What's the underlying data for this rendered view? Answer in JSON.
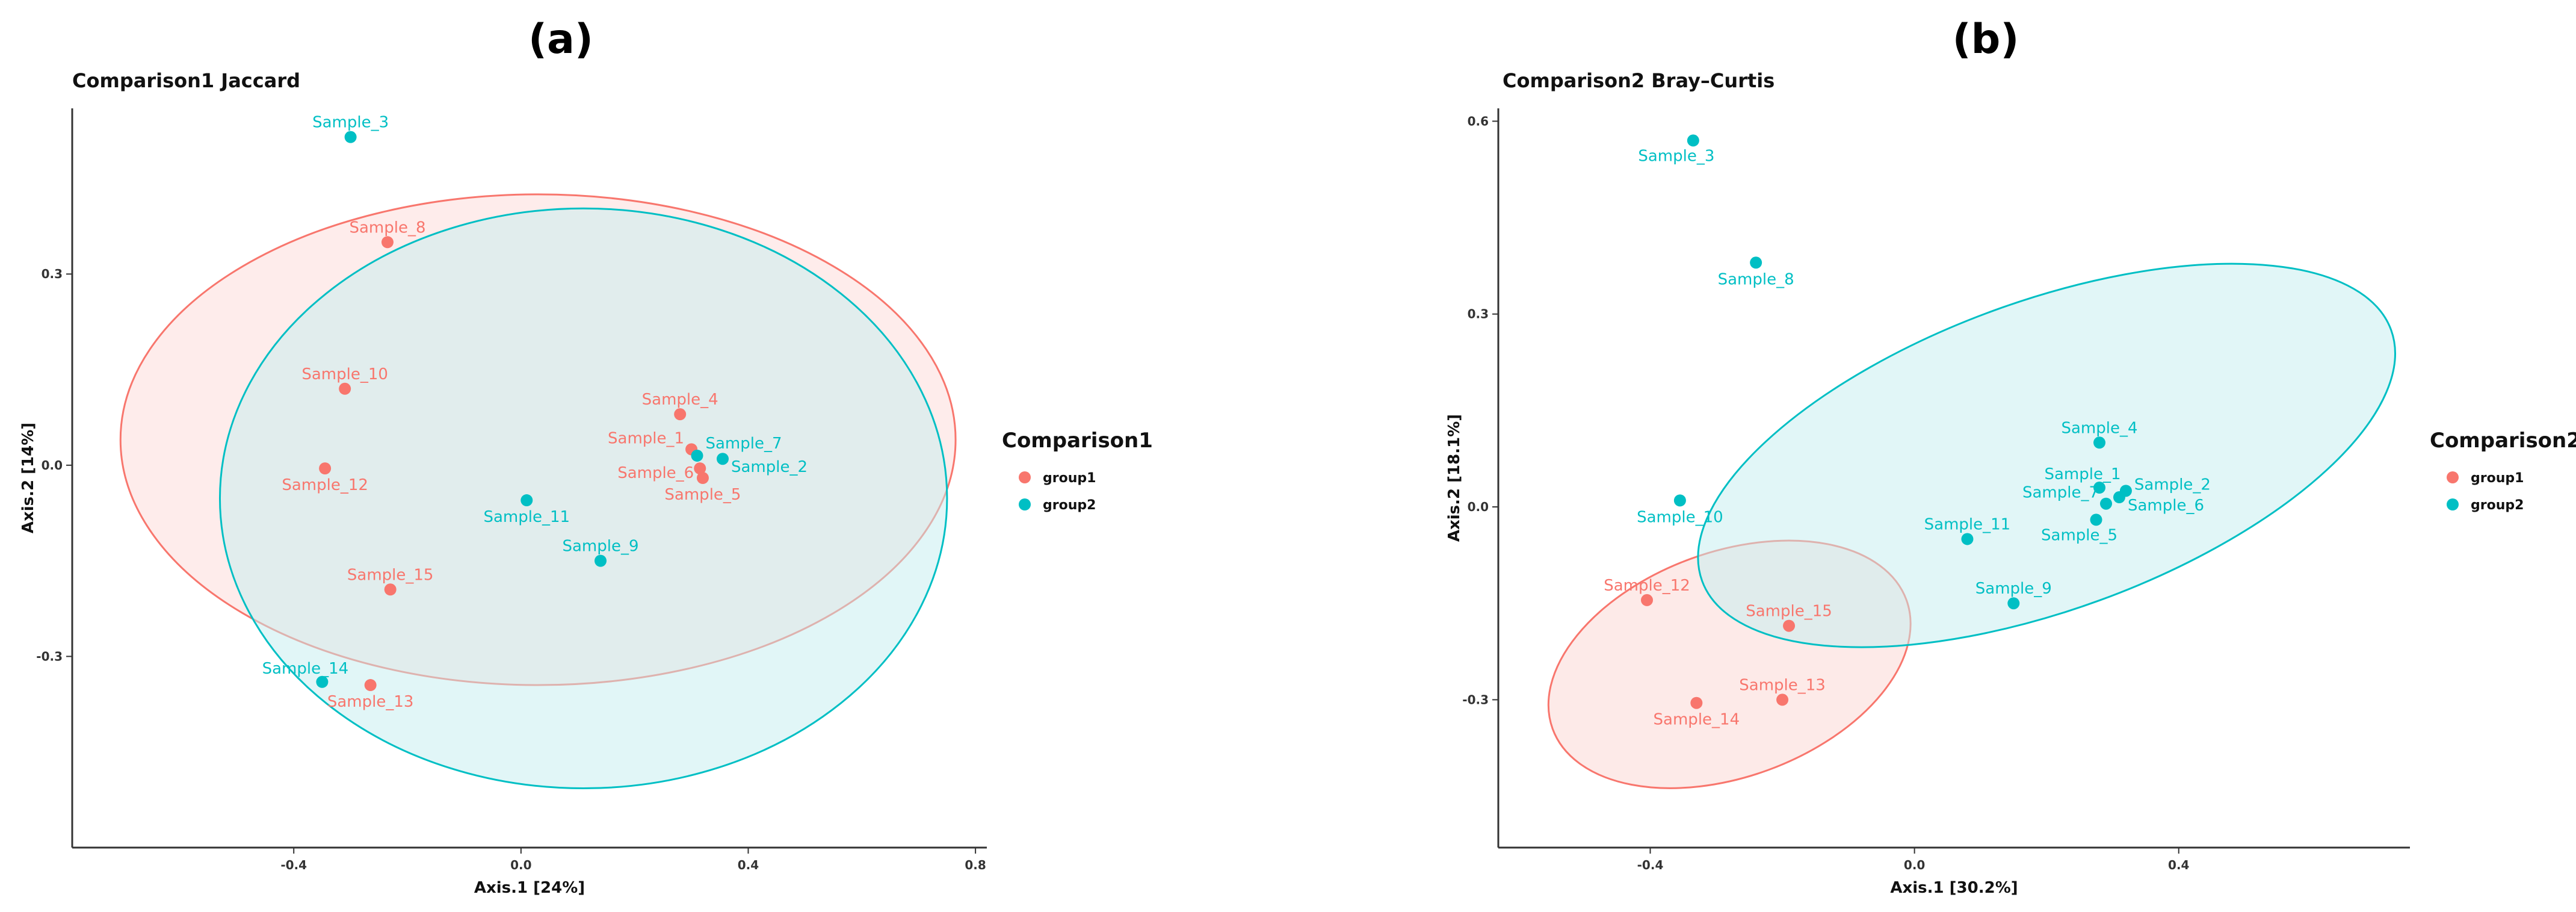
{
  "chart_data": [
    {
      "type": "scatter",
      "panel_label": "(a)",
      "title": "Comparison1 Jaccard",
      "xlabel": "Axis.1   [24%]",
      "ylabel": "Axis.2   [14%]",
      "xlim": [
        -0.79,
        0.82
      ],
      "ylim": [
        -0.6,
        0.56
      ],
      "xticks": [
        -0.4,
        0.0,
        0.4,
        0.8
      ],
      "xtick_labels": [
        "-0.4",
        "0.0",
        "0.4",
        "0.8"
      ],
      "yticks": [
        -0.3,
        0.0,
        0.3
      ],
      "ytick_labels": [
        "-0.3",
        "0.0",
        "0.3"
      ],
      "legend": {
        "title": "Comparison1",
        "position": "right",
        "entries": [
          {
            "label": "group1",
            "color": "#F8766D"
          },
          {
            "label": "group2",
            "color": "#00BFC4"
          }
        ]
      },
      "ellipses": [
        {
          "group": "group1",
          "color": "#F8766D",
          "fill": "#FDE6E4",
          "fill_opacity": 0.75,
          "cx": 0.03,
          "cy": 0.04,
          "rx": 0.735,
          "ry": 0.385,
          "rotation_deg": 0
        },
        {
          "group": "group2",
          "color": "#00BFC4",
          "fill": "#C3EEF0",
          "fill_opacity": 0.5,
          "cx": 0.11,
          "cy": -0.052,
          "rx": 0.64,
          "ry": 0.455,
          "rotation_deg": 0
        }
      ],
      "points": [
        {
          "label": "Sample_3",
          "x": -0.3,
          "y": 0.515,
          "group": "group2",
          "label_pos": "above"
        },
        {
          "label": "Sample_8",
          "x": -0.235,
          "y": 0.35,
          "group": "group1",
          "label_pos": "above"
        },
        {
          "label": "Sample_10",
          "x": -0.31,
          "y": 0.12,
          "group": "group1",
          "label_pos": "above"
        },
        {
          "label": "Sample_12",
          "x": -0.345,
          "y": -0.005,
          "group": "group1",
          "label_pos": "below"
        },
        {
          "label": "Sample_4",
          "x": 0.28,
          "y": 0.08,
          "group": "group1",
          "label_pos": "above"
        },
        {
          "label": "Sample_1",
          "x": 0.3,
          "y": 0.025,
          "group": "group1",
          "label_pos": "left"
        },
        {
          "label": "Sample_7",
          "x": 0.31,
          "y": 0.015,
          "group": "group2",
          "label_pos": "right-up"
        },
        {
          "label": "Sample_6",
          "x": 0.315,
          "y": -0.005,
          "group": "group1",
          "label_pos": "left-down"
        },
        {
          "label": "Sample_2",
          "x": 0.355,
          "y": 0.01,
          "group": "group2",
          "label_pos": "right-down"
        },
        {
          "label": "Sample_5",
          "x": 0.32,
          "y": -0.02,
          "group": "group1",
          "label_pos": "below"
        },
        {
          "label": "Sample_11",
          "x": 0.01,
          "y": -0.055,
          "group": "group2",
          "label_pos": "below"
        },
        {
          "label": "Sample_9",
          "x": 0.14,
          "y": -0.15,
          "group": "group2",
          "label_pos": "above"
        },
        {
          "label": "Sample_15",
          "x": -0.23,
          "y": -0.195,
          "group": "group1",
          "label_pos": "above"
        },
        {
          "label": "Sample_14",
          "x": -0.35,
          "y": -0.34,
          "group": "group2",
          "label_pos": "above-left"
        },
        {
          "label": "Sample_13",
          "x": -0.265,
          "y": -0.345,
          "group": "group1",
          "label_pos": "below"
        }
      ]
    },
    {
      "type": "scatter",
      "panel_label": "(b)",
      "title": "Comparison2 Bray–Curtis",
      "xlabel": "Axis.1   [30.2%]",
      "ylabel": "Axis.2   [18.1%]",
      "xlim": [
        -0.63,
        0.75
      ],
      "ylim": [
        -0.53,
        0.62
      ],
      "xticks": [
        -0.4,
        0.0,
        0.4
      ],
      "xtick_labels": [
        "-0.4",
        "0.0",
        "0.4"
      ],
      "yticks": [
        -0.3,
        0.0,
        0.3,
        0.6
      ],
      "ytick_labels": [
        "-0.3",
        "0.0",
        "0.3",
        "0.6"
      ],
      "legend": {
        "title": "Comparison2",
        "position": "right",
        "entries": [
          {
            "label": "group1",
            "color": "#F8766D"
          },
          {
            "label": "group2",
            "color": "#00BFC4"
          }
        ]
      },
      "ellipses": [
        {
          "group": "group1",
          "color": "#F8766D",
          "fill": "#FDE6E4",
          "fill_opacity": 0.85,
          "cx": -0.28,
          "cy": -0.245,
          "rx": 0.285,
          "ry": 0.175,
          "rotation_deg": 20
        },
        {
          "group": "group2",
          "color": "#00BFC4",
          "fill": "#C3EEF0",
          "fill_opacity": 0.5,
          "cx": 0.2,
          "cy": 0.08,
          "rx": 0.555,
          "ry": 0.24,
          "rotation_deg": 20
        }
      ],
      "points": [
        {
          "label": "Sample_3",
          "x": -0.335,
          "y": 0.57,
          "group": "group2",
          "label_pos": "below-left"
        },
        {
          "label": "Sample_8",
          "x": -0.24,
          "y": 0.38,
          "group": "group2",
          "label_pos": "below"
        },
        {
          "label": "Sample_4",
          "x": 0.28,
          "y": 0.1,
          "group": "group2",
          "label_pos": "above"
        },
        {
          "label": "Sample_1",
          "x": 0.28,
          "y": 0.03,
          "group": "group2",
          "label_pos": "above-left"
        },
        {
          "label": "Sample_2",
          "x": 0.32,
          "y": 0.025,
          "group": "group2",
          "label_pos": "right"
        },
        {
          "label": "Sample_6",
          "x": 0.31,
          "y": 0.015,
          "group": "group2",
          "label_pos": "right-down"
        },
        {
          "label": "Sample_7",
          "x": 0.29,
          "y": 0.005,
          "group": "group2",
          "label_pos": "left"
        },
        {
          "label": "Sample_5",
          "x": 0.275,
          "y": -0.02,
          "group": "group2",
          "label_pos": "below-left"
        },
        {
          "label": "Sample_10",
          "x": -0.355,
          "y": 0.01,
          "group": "group2",
          "label_pos": "below"
        },
        {
          "label": "Sample_11",
          "x": 0.08,
          "y": -0.05,
          "group": "group2",
          "label_pos": "above"
        },
        {
          "label": "Sample_9",
          "x": 0.15,
          "y": -0.15,
          "group": "group2",
          "label_pos": "above"
        },
        {
          "label": "Sample_12",
          "x": -0.405,
          "y": -0.145,
          "group": "group1",
          "label_pos": "above"
        },
        {
          "label": "Sample_15",
          "x": -0.19,
          "y": -0.185,
          "group": "group1",
          "label_pos": "above"
        },
        {
          "label": "Sample_13",
          "x": -0.2,
          "y": -0.3,
          "group": "group1",
          "label_pos": "above"
        },
        {
          "label": "Sample_14",
          "x": -0.33,
          "y": -0.305,
          "group": "group1",
          "label_pos": "below"
        }
      ]
    }
  ]
}
